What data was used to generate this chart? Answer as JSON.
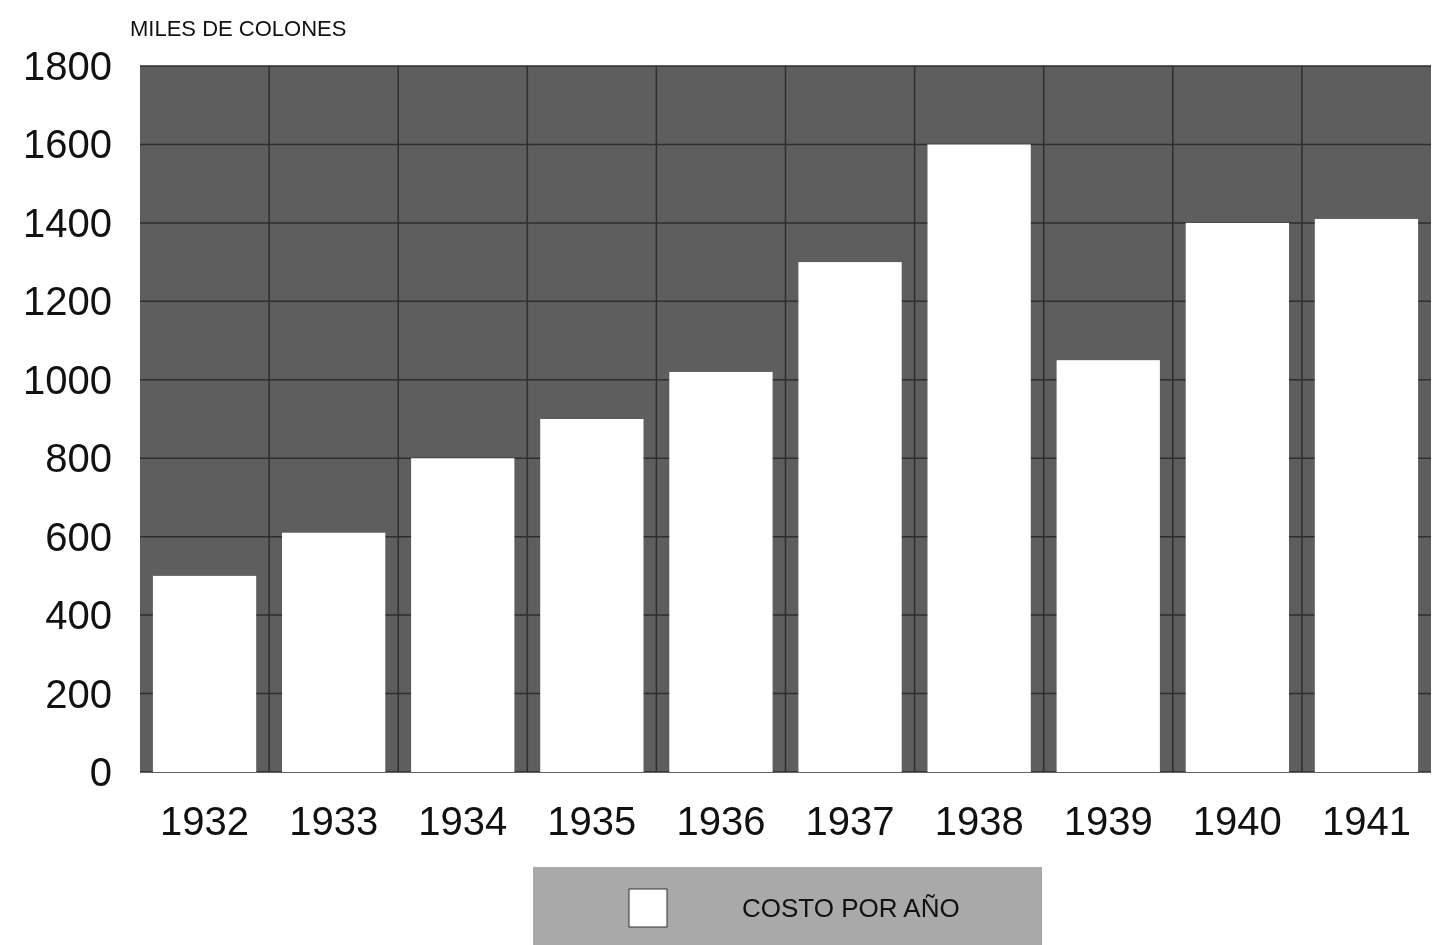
{
  "chart_data": {
    "type": "bar",
    "ylabel": "MILES DE COLONES",
    "categories": [
      "1932",
      "1933",
      "1934",
      "1935",
      "1936",
      "1937",
      "1938",
      "1939",
      "1940",
      "1941"
    ],
    "series": [
      {
        "name": "COSTO POR AÑO",
        "color": "#ffffff",
        "values": [
          500,
          610,
          800,
          900,
          1020,
          1300,
          1600,
          1050,
          1400,
          1410
        ]
      }
    ],
    "ylim": [
      0,
      1800
    ],
    "yticks": [
      0,
      200,
      400,
      600,
      800,
      1000,
      1200,
      1400,
      1600,
      1800
    ],
    "grid": true,
    "legend": "bottom"
  }
}
